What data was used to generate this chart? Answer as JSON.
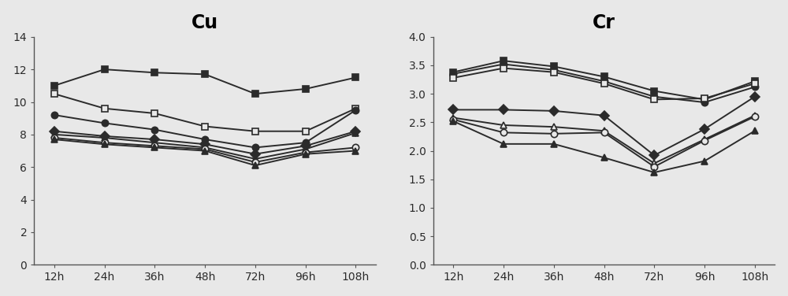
{
  "x_labels": [
    "12h",
    "24h",
    "36h",
    "48h",
    "72h",
    "96h",
    "108h"
  ],
  "x_values": [
    0,
    1,
    2,
    3,
    4,
    5,
    6
  ],
  "cu_series": [
    {
      "label": "filled_square",
      "marker": "s",
      "filled": true,
      "values": [
        11.0,
        12.0,
        11.8,
        11.7,
        10.5,
        10.8,
        11.5
      ]
    },
    {
      "label": "open_square",
      "marker": "s",
      "filled": false,
      "values": [
        10.5,
        9.6,
        9.3,
        8.5,
        8.2,
        8.2,
        9.6
      ]
    },
    {
      "label": "filled_circle",
      "marker": "o",
      "filled": true,
      "values": [
        9.2,
        8.7,
        8.3,
        7.7,
        7.2,
        7.5,
        9.5
      ]
    },
    {
      "label": "filled_diamond",
      "marker": "D",
      "filled": true,
      "values": [
        8.2,
        7.9,
        7.7,
        7.4,
        6.8,
        7.3,
        8.2
      ]
    },
    {
      "label": "filled_tri",
      "marker": "^",
      "filled": true,
      "values": [
        8.0,
        7.8,
        7.5,
        7.2,
        6.5,
        7.1,
        8.1
      ]
    },
    {
      "label": "open_circle",
      "marker": "o",
      "filled": false,
      "values": [
        7.8,
        7.5,
        7.3,
        7.1,
        6.3,
        6.9,
        7.2
      ]
    },
    {
      "label": "filled_tri2",
      "marker": "^",
      "filled": true,
      "values": [
        7.7,
        7.4,
        7.2,
        7.0,
        6.1,
        6.8,
        7.0
      ]
    }
  ],
  "cr_series": [
    {
      "label": "filled_square",
      "marker": "s",
      "filled": true,
      "values": [
        3.38,
        3.58,
        3.48,
        3.3,
        3.05,
        2.9,
        3.22
      ]
    },
    {
      "label": "filled_circle",
      "marker": "o",
      "filled": true,
      "values": [
        3.35,
        3.52,
        3.42,
        3.22,
        2.95,
        2.85,
        3.12
      ]
    },
    {
      "label": "open_square",
      "marker": "s",
      "filled": false,
      "values": [
        3.28,
        3.45,
        3.38,
        3.18,
        2.9,
        2.92,
        3.18
      ]
    },
    {
      "label": "filled_diamond",
      "marker": "D",
      "filled": true,
      "values": [
        2.72,
        2.72,
        2.7,
        2.62,
        1.92,
        2.38,
        2.95
      ]
    },
    {
      "label": "open_tri",
      "marker": "^",
      "filled": false,
      "values": [
        2.58,
        2.45,
        2.42,
        2.35,
        1.78,
        2.2,
        2.62
      ]
    },
    {
      "label": "open_circle",
      "marker": "o",
      "filled": false,
      "values": [
        2.55,
        2.32,
        2.3,
        2.32,
        1.72,
        2.18,
        2.6
      ]
    },
    {
      "label": "filled_tri",
      "marker": "^",
      "filled": true,
      "values": [
        2.52,
        2.12,
        2.12,
        1.88,
        1.62,
        1.82,
        2.35
      ]
    }
  ],
  "cu_ylim": [
    0,
    14
  ],
  "cu_yticks": [
    0,
    2,
    4,
    6,
    8,
    10,
    12,
    14
  ],
  "cr_ylim": [
    0.0,
    4.0
  ],
  "cr_yticks": [
    0.0,
    0.5,
    1.0,
    1.5,
    2.0,
    2.5,
    3.0,
    3.5,
    4.0
  ],
  "title_cu": "Cu",
  "title_cr": "Cr",
  "title_fontsize": 17,
  "title_fontweight": "bold",
  "line_color": "#2b2b2b",
  "bg_color": "#e8e8e8",
  "plot_bg": "#e8e8e8",
  "tick_fontsize": 10,
  "line_width": 1.4,
  "marker_size": 6
}
